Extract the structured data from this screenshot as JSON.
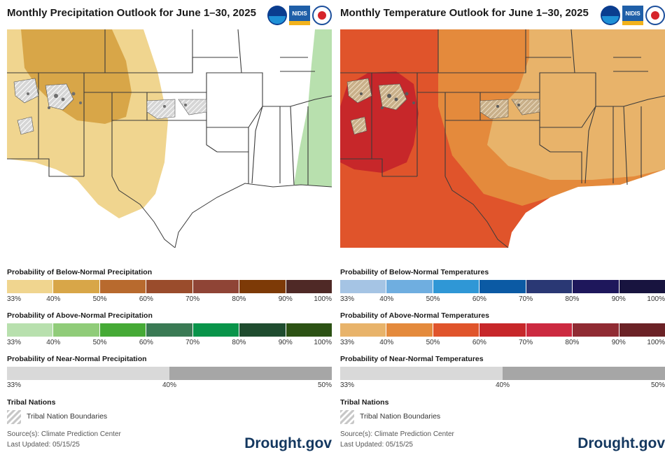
{
  "precip": {
    "title": "Monthly Precipitation Outlook for June 1–30, 2025",
    "logo_names": [
      "noaa-logo",
      "nidis-logo",
      "nws-logo"
    ],
    "nidis_text": "NIDIS",
    "below": {
      "label": "Probability of Below-Normal Precipitation",
      "colors": [
        "#f0d58f",
        "#d8a648",
        "#b86a2e",
        "#9a4c2c",
        "#8f4436",
        "#7d3a07",
        "#4f2926"
      ],
      "ticks": [
        "33%",
        "40%",
        "50%",
        "60%",
        "70%",
        "80%",
        "90%",
        "100%"
      ]
    },
    "above": {
      "label": "Probability of Above-Normal Precipitation",
      "colors": [
        "#b8e0ae",
        "#90cc79",
        "#46aa36",
        "#3a7a54",
        "#09944a",
        "#1f4c2f",
        "#2c5214"
      ],
      "ticks": [
        "33%",
        "40%",
        "50%",
        "60%",
        "70%",
        "80%",
        "90%",
        "100%"
      ]
    },
    "near": {
      "label": "Probability of Near-Normal Precipitation",
      "colors": [
        "#d9d9d9",
        "#a6a6a6"
      ],
      "ticks": [
        "33%",
        "40%",
        "50%"
      ]
    },
    "tribal_heading": "Tribal Nations",
    "tribal_label": "Tribal Nation Boundaries",
    "source": "Source(s): Climate Prediction Center",
    "updated": "Last Updated: 05/15/25",
    "brand": "Drought.gov",
    "map_colors": {
      "below_40": "#f0d58f",
      "below_50": "#d8a648",
      "above_33": "#b8e0ae",
      "normal": "#ffffff"
    }
  },
  "temp": {
    "title": "Monthly Temperature Outlook for June 1–30, 2025",
    "logo_names": [
      "noaa-logo",
      "nidis-logo",
      "nws-logo"
    ],
    "nidis_text": "NIDIS",
    "below": {
      "label": "Probability of Below-Normal Temperatures",
      "colors": [
        "#a5c4e4",
        "#6faee0",
        "#2f97d6",
        "#0b5aa4",
        "#2a3874",
        "#1e175b",
        "#18143f"
      ],
      "ticks": [
        "33%",
        "40%",
        "50%",
        "60%",
        "70%",
        "80%",
        "90%",
        "100%"
      ]
    },
    "above": {
      "label": "Probability of Above-Normal Temperatures",
      "colors": [
        "#e8b36a",
        "#e48a3c",
        "#e0542b",
        "#c7272a",
        "#cc2a40",
        "#902b33",
        "#6b2226"
      ],
      "ticks": [
        "33%",
        "40%",
        "50%",
        "60%",
        "70%",
        "80%",
        "90%",
        "100%"
      ]
    },
    "near": {
      "label": "Probability of Near-Normal Temperatures",
      "colors": [
        "#d9d9d9",
        "#a6a6a6"
      ],
      "ticks": [
        "33%",
        "40%",
        "50%"
      ]
    },
    "tribal_heading": "Tribal Nations",
    "tribal_label": "Tribal Nation Boundaries",
    "source": "Source(s): Climate Prediction Center",
    "updated": "Last Updated: 05/15/25",
    "brand": "Drought.gov",
    "map_colors": {
      "above_33": "#e8b36a",
      "above_40": "#e48a3c",
      "above_50": "#e0542b",
      "above_60": "#c7272a"
    }
  }
}
